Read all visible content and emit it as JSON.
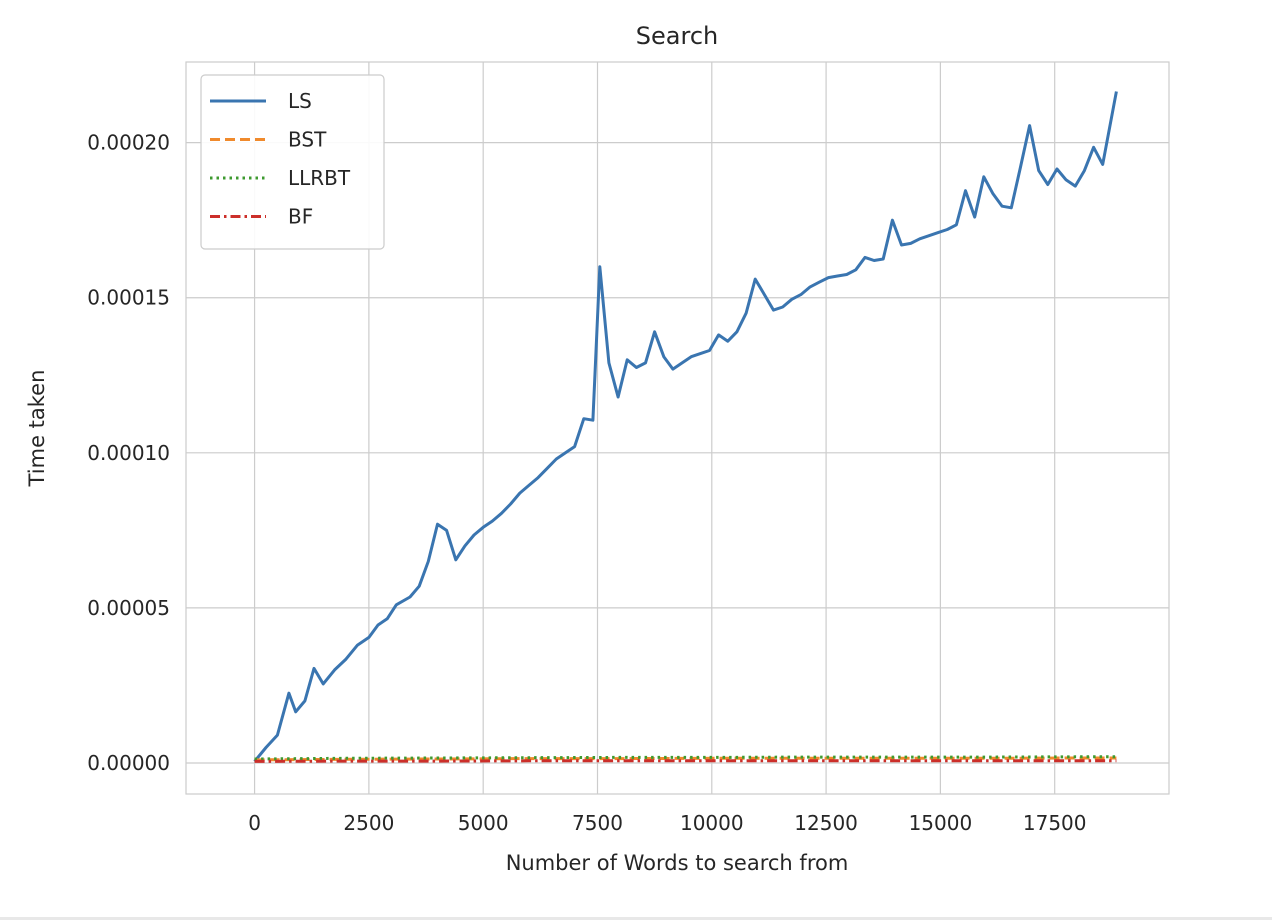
{
  "chart_data": {
    "type": "line",
    "title": "Search",
    "xlabel": "Number of Words to search from",
    "ylabel": "Time taken",
    "xlim": [
      -1500,
      20000
    ],
    "ylim": [
      -1e-05,
      0.000226
    ],
    "xticks": [
      0,
      2500,
      5000,
      7500,
      10000,
      12500,
      15000,
      17500
    ],
    "xtick_labels": [
      "0",
      "2500",
      "5000",
      "7500",
      "10000",
      "12500",
      "15000",
      "17500"
    ],
    "yticks": [
      0,
      5e-05,
      0.0001,
      0.00015,
      0.0002
    ],
    "ytick_labels": [
      "0.00000",
      "0.00005",
      "0.00010",
      "0.00015",
      "0.00020"
    ],
    "grid": true,
    "legend": "top-left",
    "series": [
      {
        "name": "LS",
        "color": "#3a75b0",
        "style": "solid",
        "x": [
          0,
          250,
          500,
          750,
          900,
          1100,
          1300,
          1500,
          1750,
          2000,
          2250,
          2500,
          2700,
          2900,
          3100,
          3400,
          3600,
          3800,
          4000,
          4200,
          4400,
          4600,
          4800,
          5000,
          5200,
          5400,
          5600,
          5800,
          6000,
          6200,
          6400,
          6600,
          6800,
          7000,
          7200,
          7400,
          7550,
          7750,
          7950,
          8150,
          8350,
          8550,
          8750,
          8950,
          9150,
          9350,
          9550,
          9750,
          9950,
          10150,
          10350,
          10550,
          10750,
          10950,
          11150,
          11350,
          11550,
          11750,
          11950,
          12150,
          12350,
          12550,
          12750,
          12950,
          13150,
          13350,
          13550,
          13750,
          13950,
          14150,
          14350,
          14550,
          14750,
          14950,
          15150,
          15350,
          15550,
          15750,
          15950,
          16150,
          16350,
          16550,
          16750,
          16950,
          17150,
          17350,
          17550,
          17750,
          17950,
          18150,
          18350,
          18550,
          18850
        ],
        "y": [
          5e-07,
          5e-06,
          9e-06,
          2.25e-05,
          1.65e-05,
          2e-05,
          3.05e-05,
          2.55e-05,
          3e-05,
          3.35e-05,
          3.8e-05,
          4.05e-05,
          4.45e-05,
          4.65e-05,
          5.1e-05,
          5.35e-05,
          5.7e-05,
          6.5e-05,
          7.7e-05,
          7.5e-05,
          6.55e-05,
          7e-05,
          7.35e-05,
          7.6e-05,
          7.8e-05,
          8.05e-05,
          8.35e-05,
          8.7e-05,
          8.95e-05,
          9.2e-05,
          9.5e-05,
          9.8e-05,
          0.0001,
          0.000102,
          0.000111,
          0.0001105,
          0.00016,
          0.000129,
          0.000118,
          0.00013,
          0.0001275,
          0.000129,
          0.000139,
          0.000131,
          0.000127,
          0.000129,
          0.000131,
          0.000132,
          0.000133,
          0.000138,
          0.000136,
          0.000139,
          0.000145,
          0.000156,
          0.000151,
          0.000146,
          0.000147,
          0.0001495,
          0.000151,
          0.0001535,
          0.000155,
          0.0001565,
          0.000157,
          0.0001575,
          0.000159,
          0.000163,
          0.000162,
          0.0001625,
          0.000175,
          0.000167,
          0.0001675,
          0.000169,
          0.00017,
          0.000171,
          0.000172,
          0.0001735,
          0.0001845,
          0.000176,
          0.000189,
          0.0001835,
          0.0001795,
          0.000179,
          0.000192,
          0.0002055,
          0.000191,
          0.0001865,
          0.0001915,
          0.000188,
          0.000186,
          0.000191,
          0.0001985,
          0.000193,
          0.0002165
        ]
      },
      {
        "name": "BST",
        "color": "#f08a2c",
        "style": "dashed",
        "x": [
          0,
          2000,
          4000,
          6000,
          8000,
          10000,
          12000,
          14000,
          16000,
          18000,
          18850
        ],
        "y": [
          1e-06,
          1.2e-06,
          1.3e-06,
          1.4e-06,
          1.4e-06,
          1.5e-06,
          1.5e-06,
          1.5e-06,
          1.5e-06,
          1.6e-06,
          1.6e-06
        ]
      },
      {
        "name": "LLRBT",
        "color": "#3d9a2f",
        "style": "dotted",
        "x": [
          0,
          2000,
          4000,
          6000,
          8000,
          10000,
          12000,
          14000,
          16000,
          18000,
          18850
        ],
        "y": [
          1.3e-06,
          1.5e-06,
          1.6e-06,
          1.7e-06,
          1.8e-06,
          1.8e-06,
          1.9e-06,
          1.9e-06,
          1.9e-06,
          2e-06,
          2e-06
        ]
      },
      {
        "name": "BF",
        "color": "#cc2f2a",
        "style": "dashdot",
        "x": [
          0,
          2000,
          4000,
          6000,
          8000,
          10000,
          12000,
          14000,
          16000,
          18000,
          18850
        ],
        "y": [
          5e-07,
          6e-07,
          6e-07,
          7e-07,
          7e-07,
          7e-07,
          7e-07,
          7e-07,
          7e-07,
          7e-07,
          7e-07
        ]
      }
    ]
  }
}
